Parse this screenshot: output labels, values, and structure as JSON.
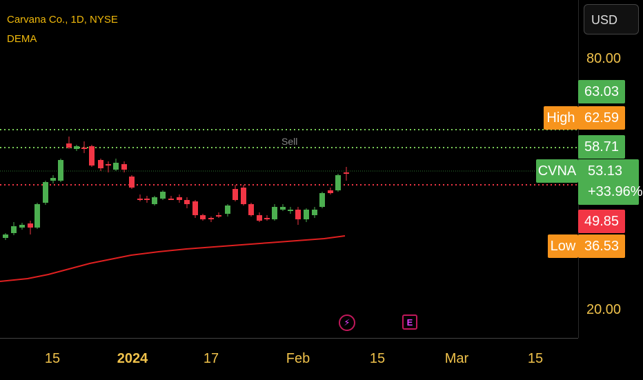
{
  "legend": {
    "symbol_line": "Carvana Co., 1D, NYSE",
    "indicator": "DEMA"
  },
  "currency_button": "USD",
  "price_axis": {
    "ticks": [
      "80.00",
      "20.00"
    ]
  },
  "price_tags": {
    "green_top": "63.03",
    "high_label": "High",
    "high_value": "62.59",
    "green_mid": "58.71",
    "symbol_label": "CVNA",
    "last_price": "53.13",
    "change_pct": "+33.96%",
    "red_value": "49.85",
    "low_label": "Low",
    "low_value": "36.53"
  },
  "chart_label": "Sell",
  "time_axis": {
    "ticks": [
      "15",
      "2024",
      "17",
      "Feb",
      "15",
      "Mar",
      "15"
    ]
  },
  "events": {
    "dividend_icon": "⚡",
    "earnings_icon": "E"
  },
  "colors": {
    "up": "#4caf50",
    "down": "#f23645",
    "dema": "#e02020",
    "high_line": "#7ccf5a",
    "red_line": "#f23645",
    "orange": "#f7941d",
    "axis_text": "#f0c24b"
  }
}
